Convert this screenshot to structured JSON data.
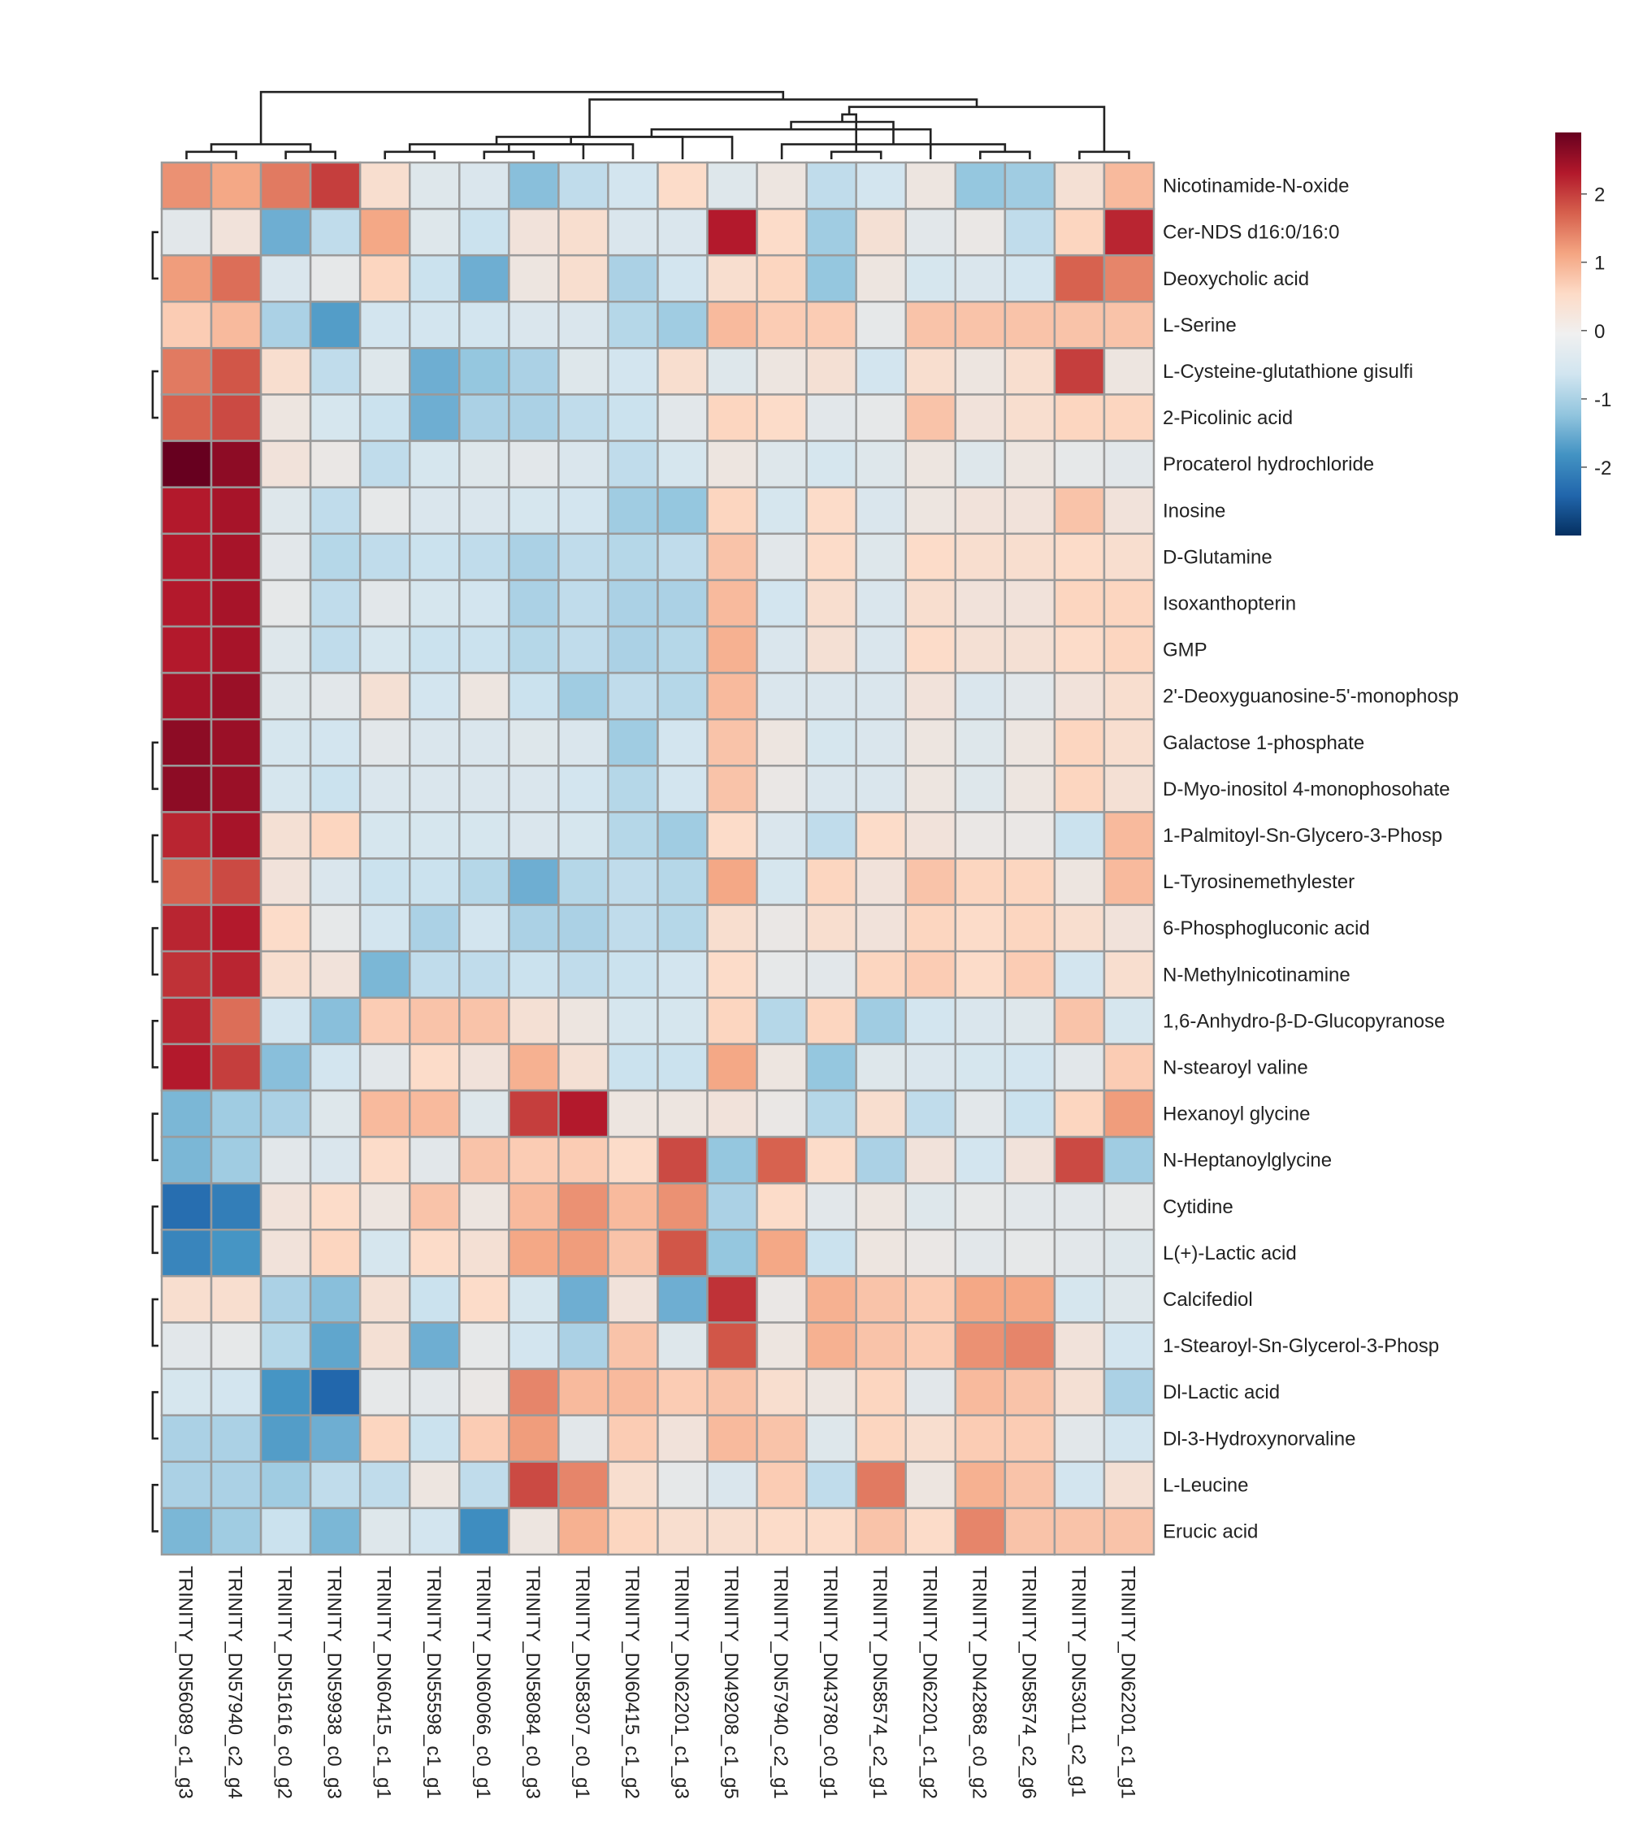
{
  "chart_data": {
    "type": "heatmap",
    "title": "",
    "columns": [
      "TRINITY_DN56089_c1_g3",
      "TRINITY_DN57940_c2_g4",
      "TRINITY_DN51616_c0_g2",
      "TRINITY_DN59938_c0_g3",
      "TRINITY_DN60415_c1_g1",
      "TRINITY_DN55598_c1_g1",
      "TRINITY_DN60066_c0_g1",
      "TRINITY_DN58084_c0_g3",
      "TRINITY_DN58307_c0_g1",
      "TRINITY_DN60415_c1_g2",
      "TRINITY_DN62201_c1_g3",
      "TRINITY_DN49208_c1_g5",
      "TRINITY_DN57940_c2_g1",
      "TRINITY_DN43780_c0_g1",
      "TRINITY_DN58574_c2_g1",
      "TRINITY_DN62201_c1_g2",
      "TRINITY_DN42868_c0_g2",
      "TRINITY_DN58574_c2_g6",
      "TRINITY_DN53011_c2_g1",
      "TRINITY_DN62201_c1_g1"
    ],
    "rows": [
      "Nicotinamide-N-oxide",
      "Cer-NDS d16:0/16:0",
      "Deoxycholic acid",
      "L-Serine",
      "L-Cysteine-glutathione gisulfi",
      "2-Picolinic acid",
      "Procaterol hydrochloride",
      "Inosine",
      "D-Glutamine",
      "Isoxanthopterin",
      "GMP",
      "2'-Deoxyguanosine-5'-monophosp",
      "Galactose 1-phosphate",
      "D-Myo-inositol 4-monophosohate",
      "1-Palmitoyl-Sn-Glycero-3-Phosp",
      "L-Tyrosinemethylester",
      "6-Phosphogluconic acid",
      "N-Methylnicotinamine",
      "1,6-Anhydro-β-D-Glucopyranose",
      "N-stearoyl valine",
      "Hexanoyl glycine",
      "N-Heptanoylglycine",
      "Cytidine",
      "L(+)-Lactic acid",
      "Calcifediol",
      "1-Stearoyl-Sn-Glycerol-3-Phosp",
      "Dl-Lactic acid",
      "Dl-3-Hydroxynorvaline",
      "L-Leucine",
      "Erucic acid"
    ],
    "values": [
      [
        1.3,
        1.1,
        1.5,
        2.0,
        0.4,
        -0.3,
        -0.4,
        -1.3,
        -0.8,
        -0.6,
        0.5,
        -0.3,
        0.1,
        -0.8,
        -0.6,
        0.1,
        -1.2,
        -1.1,
        0.3,
        0.9
      ],
      [
        -0.2,
        0.2,
        -1.5,
        -0.8,
        1.1,
        -0.3,
        -0.7,
        0.2,
        0.4,
        -0.4,
        -0.4,
        2.3,
        0.5,
        -1.1,
        0.3,
        -0.2,
        0.0,
        -0.8,
        0.6,
        2.2
      ],
      [
        1.2,
        1.6,
        -0.4,
        -0.1,
        0.6,
        -0.7,
        -1.5,
        0.1,
        0.4,
        -1.0,
        -0.6,
        0.4,
        0.6,
        -1.2,
        0.1,
        -0.5,
        -0.4,
        -0.6,
        1.7,
        1.4
      ],
      [
        0.7,
        0.9,
        -1.0,
        -1.7,
        -0.6,
        -0.6,
        -0.6,
        -0.4,
        -0.4,
        -0.9,
        -1.1,
        0.9,
        0.7,
        0.7,
        -0.1,
        0.8,
        0.8,
        0.8,
        0.8,
        0.8
      ],
      [
        1.5,
        1.8,
        0.4,
        -0.8,
        -0.3,
        -1.5,
        -1.2,
        -1.0,
        -0.3,
        -0.6,
        0.4,
        -0.3,
        0.1,
        0.3,
        -0.6,
        0.4,
        0.1,
        0.4,
        2.0,
        0.1
      ],
      [
        1.7,
        1.9,
        0.1,
        -0.5,
        -0.7,
        -1.5,
        -1.0,
        -1.0,
        -0.8,
        -0.7,
        -0.2,
        0.6,
        0.5,
        -0.2,
        -0.1,
        0.8,
        0.2,
        0.4,
        0.6,
        0.6
      ],
      [
        2.9,
        2.6,
        0.2,
        0.0,
        -0.8,
        -0.5,
        -0.3,
        -0.2,
        -0.4,
        -0.8,
        -0.5,
        0.1,
        -0.3,
        -0.5,
        -0.3,
        0.1,
        -0.3,
        0.1,
        -0.1,
        -0.2
      ],
      [
        2.3,
        2.4,
        -0.3,
        -0.8,
        -0.1,
        -0.4,
        -0.4,
        -0.5,
        -0.6,
        -1.1,
        -1.2,
        0.6,
        -0.5,
        0.5,
        -0.4,
        0.1,
        0.2,
        0.2,
        0.8,
        0.2
      ],
      [
        2.3,
        2.4,
        -0.2,
        -0.9,
        -0.8,
        -0.7,
        -0.8,
        -1.0,
        -0.8,
        -0.9,
        -0.8,
        0.8,
        -0.2,
        0.5,
        -0.3,
        0.5,
        0.4,
        0.4,
        0.5,
        0.4
      ],
      [
        2.3,
        2.4,
        -0.1,
        -0.8,
        -0.2,
        -0.5,
        -0.6,
        -1.0,
        -0.8,
        -1.0,
        -1.0,
        0.9,
        -0.6,
        0.4,
        -0.4,
        0.4,
        0.2,
        0.2,
        0.6,
        0.6
      ],
      [
        2.3,
        2.4,
        -0.3,
        -0.8,
        -0.5,
        -0.7,
        -0.7,
        -0.9,
        -0.8,
        -1.0,
        -0.9,
        1.0,
        -0.4,
        0.3,
        -0.4,
        0.5,
        0.3,
        0.3,
        0.5,
        0.6
      ],
      [
        2.4,
        2.5,
        -0.3,
        -0.2,
        0.3,
        -0.6,
        0.1,
        -0.7,
        -1.1,
        -0.8,
        -0.9,
        0.9,
        -0.4,
        -0.4,
        -0.4,
        0.2,
        -0.4,
        -0.2,
        0.2,
        0.4
      ],
      [
        2.6,
        2.5,
        -0.5,
        -0.6,
        -0.2,
        -0.4,
        -0.4,
        -0.3,
        -0.4,
        -1.1,
        -0.6,
        0.8,
        0.1,
        -0.5,
        -0.4,
        0.1,
        -0.3,
        0.1,
        0.6,
        0.4
      ],
      [
        2.6,
        2.5,
        -0.5,
        -0.7,
        -0.4,
        -0.4,
        -0.4,
        -0.4,
        -0.6,
        -0.9,
        -0.6,
        0.8,
        0.0,
        -0.4,
        -0.4,
        0.1,
        -0.3,
        0.1,
        0.6,
        0.3
      ],
      [
        2.2,
        2.4,
        0.3,
        0.6,
        -0.5,
        -0.5,
        -0.5,
        -0.4,
        -0.5,
        -0.9,
        -1.1,
        0.5,
        -0.4,
        -0.8,
        0.5,
        0.2,
        0.0,
        0.0,
        -0.7,
        0.9
      ],
      [
        1.7,
        1.9,
        0.2,
        -0.4,
        -0.7,
        -0.7,
        -0.9,
        -1.5,
        -0.9,
        -0.8,
        -0.9,
        1.1,
        -0.5,
        0.6,
        0.2,
        0.8,
        0.6,
        0.6,
        0.1,
        0.9
      ],
      [
        2.2,
        2.3,
        0.5,
        -0.1,
        -0.6,
        -1.0,
        -0.6,
        -1.0,
        -1.0,
        -0.8,
        -0.9,
        0.4,
        0.0,
        0.4,
        0.2,
        0.6,
        0.5,
        0.6,
        0.4,
        0.2
      ],
      [
        2.1,
        2.2,
        0.4,
        0.2,
        -1.4,
        -0.8,
        -0.8,
        -0.7,
        -0.8,
        -0.7,
        -0.6,
        0.5,
        -0.1,
        -0.2,
        0.6,
        0.7,
        0.5,
        0.7,
        -0.6,
        0.4
      ],
      [
        2.2,
        1.6,
        -0.6,
        -1.3,
        0.7,
        0.8,
        0.8,
        0.3,
        0.1,
        -0.5,
        -0.5,
        0.6,
        -0.9,
        0.6,
        -1.1,
        -0.6,
        -0.4,
        -0.3,
        0.8,
        -0.5
      ],
      [
        2.3,
        2.0,
        -1.3,
        -0.6,
        -0.2,
        0.5,
        0.2,
        1.0,
        0.3,
        -0.7,
        -0.7,
        1.1,
        0.1,
        -1.2,
        -0.3,
        -0.4,
        -0.5,
        -0.6,
        -0.2,
        0.7
      ],
      [
        -1.4,
        -1.1,
        -1.0,
        -0.3,
        0.9,
        0.9,
        -0.3,
        2.0,
        2.3,
        0.1,
        0.1,
        0.2,
        0.0,
        -0.9,
        0.4,
        -0.8,
        -0.2,
        -0.7,
        0.6,
        1.2
      ],
      [
        -1.4,
        -1.1,
        -0.2,
        -0.4,
        0.5,
        -0.2,
        0.8,
        0.7,
        0.7,
        0.5,
        1.9,
        -1.2,
        1.7,
        0.5,
        -1.0,
        0.2,
        -0.6,
        0.2,
        1.9,
        -1.1
      ],
      [
        -2.3,
        -2.1,
        0.2,
        0.5,
        0.1,
        0.8,
        0.1,
        0.9,
        1.3,
        0.9,
        1.3,
        -1.0,
        0.5,
        -0.2,
        0.1,
        -0.3,
        -0.1,
        -0.2,
        -0.2,
        -0.1
      ],
      [
        -2.0,
        -1.8,
        0.2,
        0.6,
        -0.5,
        0.5,
        0.3,
        1.1,
        1.2,
        0.8,
        1.8,
        -1.2,
        1.1,
        -0.7,
        0.1,
        0.0,
        -0.2,
        -0.1,
        -0.2,
        -0.3
      ],
      [
        0.4,
        0.4,
        -1.0,
        -1.3,
        0.3,
        -0.7,
        0.5,
        -0.5,
        -1.5,
        0.2,
        -1.5,
        2.1,
        0.0,
        1.0,
        0.8,
        0.7,
        1.1,
        1.1,
        -0.5,
        -0.3
      ],
      [
        -0.2,
        -0.1,
        -0.9,
        -1.6,
        0.3,
        -1.5,
        -0.1,
        -0.6,
        -1.0,
        0.8,
        -0.3,
        1.8,
        0.1,
        1.0,
        0.8,
        0.7,
        1.3,
        1.4,
        0.2,
        -0.6
      ],
      [
        -0.5,
        -0.6,
        -1.8,
        -2.4,
        -0.1,
        -0.2,
        0.0,
        1.4,
        0.9,
        0.9,
        0.7,
        0.8,
        0.4,
        0.1,
        0.6,
        -0.2,
        0.9,
        0.8,
        0.3,
        -1.0
      ],
      [
        -1.0,
        -1.0,
        -1.7,
        -1.5,
        0.6,
        -0.7,
        0.7,
        1.2,
        -0.2,
        0.7,
        0.2,
        0.9,
        0.8,
        -0.3,
        0.6,
        0.4,
        0.7,
        0.7,
        -0.2,
        -0.6
      ],
      [
        -1.0,
        -1.0,
        -1.1,
        -0.8,
        -0.8,
        0.1,
        -0.8,
        1.9,
        1.4,
        0.4,
        -0.1,
        -0.4,
        0.7,
        -0.8,
        1.5,
        0.1,
        1.0,
        0.8,
        -0.6,
        0.3
      ],
      [
        -1.4,
        -1.1,
        -0.7,
        -1.4,
        -0.3,
        -0.6,
        -1.9,
        0.1,
        1.0,
        0.6,
        0.4,
        0.4,
        0.5,
        0.5,
        0.8,
        0.5,
        1.4,
        0.8,
        0.8,
        0.8
      ]
    ],
    "color_scale": {
      "min": -3,
      "max": 2.9,
      "colors": [
        "#053061",
        "#2166ac",
        "#4393c3",
        "#92c5de",
        "#d1e5f0",
        "#e8e8e8",
        "#fddbc7",
        "#f4a582",
        "#d6604d",
        "#b2182b",
        "#67001f"
      ]
    },
    "colorbar_ticks": [
      {
        "value": 2,
        "label": "2"
      },
      {
        "value": 1,
        "label": "1"
      },
      {
        "value": 0,
        "label": "0"
      },
      {
        "value": -1,
        "label": "-1"
      },
      {
        "value": -2,
        "label": "-2"
      }
    ],
    "column_dendrogram": [
      [
        0,
        1
      ],
      [
        2,
        3
      ],
      [
        20,
        21
      ],
      [
        4,
        5
      ],
      [
        6,
        7
      ],
      [
        23,
        8
      ],
      [
        24,
        9
      ],
      [
        25,
        10
      ],
      [
        26,
        11
      ],
      [
        13,
        14
      ],
      [
        16,
        17
      ],
      [
        12,
        30
      ],
      [
        28,
        15
      ],
      [
        32,
        31
      ],
      [
        29,
        33
      ],
      [
        18,
        19
      ],
      [
        34,
        35
      ],
      [
        27,
        36
      ],
      [
        37,
        22
      ]
    ],
    "row_dendrogram": [
      [
        12,
        13
      ],
      [
        10,
        38
      ],
      [
        11,
        39
      ],
      [
        9,
        40
      ],
      [
        8,
        41
      ],
      [
        7,
        42
      ],
      [
        6,
        43
      ],
      [
        16,
        17
      ],
      [
        14,
        15
      ],
      [
        45,
        46
      ],
      [
        18,
        19
      ],
      [
        48,
        49
      ],
      [
        44,
        47
      ],
      [
        51,
        50
      ],
      [
        4,
        5
      ],
      [
        53,
        52
      ],
      [
        3,
        54
      ],
      [
        1,
        2
      ],
      [
        56,
        55
      ],
      [
        0,
        57
      ],
      [
        22,
        23
      ],
      [
        20,
        21
      ],
      [
        60,
        59
      ],
      [
        26,
        27
      ],
      [
        28,
        29
      ],
      [
        61,
        62
      ],
      [
        24,
        25
      ],
      [
        64,
        63
      ],
      [
        58,
        65
      ]
    ]
  }
}
